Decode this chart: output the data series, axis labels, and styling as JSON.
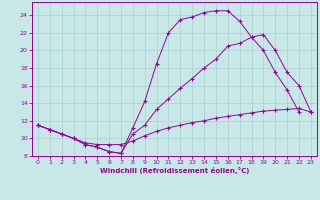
{
  "xlabel": "Windchill (Refroidissement éolien,°C)",
  "background_color": "#c8e8e8",
  "line_color": "#990099",
  "grid_color": "#aad0d0",
  "xlim_min": -0.5,
  "xlim_max": 23.5,
  "ylim_min": 8,
  "ylim_max": 25.5,
  "xticks": [
    0,
    1,
    2,
    3,
    4,
    5,
    6,
    7,
    8,
    9,
    10,
    11,
    12,
    13,
    14,
    15,
    16,
    17,
    18,
    19,
    20,
    21,
    22,
    23
  ],
  "yticks": [
    8,
    10,
    12,
    14,
    16,
    18,
    20,
    22,
    24
  ],
  "line1_x": [
    0,
    1,
    2,
    3,
    4,
    5,
    6,
    7,
    8,
    9,
    10,
    11,
    12,
    13,
    14,
    15,
    16,
    17,
    18,
    19,
    20,
    21,
    22
  ],
  "line1_y": [
    11.5,
    11.0,
    10.5,
    10.0,
    9.3,
    9.0,
    8.5,
    8.3,
    11.2,
    14.2,
    18.5,
    22.0,
    23.5,
    23.8,
    24.3,
    24.5,
    24.5,
    23.3,
    21.5,
    20.0,
    17.5,
    15.5,
    13.0
  ],
  "line2_x": [
    0,
    1,
    2,
    3,
    4,
    5,
    6,
    7,
    8,
    9,
    10,
    11,
    12,
    13,
    14,
    15,
    16,
    17,
    18,
    19,
    20,
    21,
    22,
    23
  ],
  "line2_y": [
    11.5,
    11.0,
    10.5,
    10.0,
    9.3,
    9.0,
    8.5,
    8.3,
    10.5,
    11.5,
    13.3,
    14.5,
    15.7,
    16.8,
    18.0,
    19.0,
    20.5,
    20.8,
    21.5,
    21.8,
    20.0,
    17.5,
    16.0,
    13.0
  ],
  "line3_x": [
    0,
    1,
    2,
    3,
    4,
    5,
    6,
    7,
    8,
    9,
    10,
    11,
    12,
    13,
    14,
    15,
    16,
    17,
    18,
    19,
    20,
    21,
    22,
    23
  ],
  "line3_y": [
    11.5,
    11.0,
    10.5,
    10.0,
    9.5,
    9.3,
    9.3,
    9.3,
    9.7,
    10.3,
    10.8,
    11.2,
    11.5,
    11.8,
    12.0,
    12.3,
    12.5,
    12.7,
    12.9,
    13.1,
    13.2,
    13.3,
    13.4,
    13.0
  ]
}
